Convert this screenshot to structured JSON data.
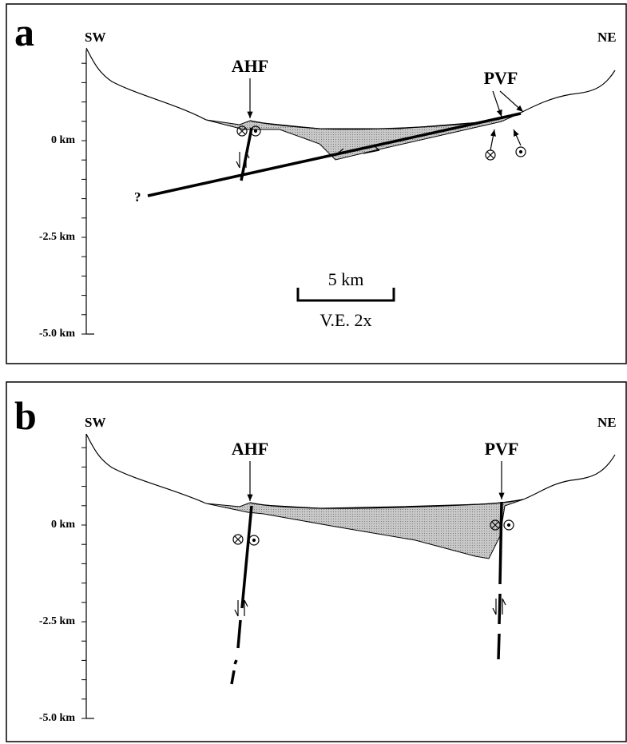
{
  "panels": [
    {
      "letter": "a",
      "left_label": "SW",
      "right_label": "NE",
      "faults": [
        "AHF",
        "PVF"
      ],
      "depth_labels": [
        "0 km",
        "-2.5 km",
        "-5.0 km"
      ],
      "unknown_marker": "?",
      "scale_bar": "5 km",
      "exaggeration": "V.E. 2x"
    },
    {
      "letter": "b",
      "left_label": "SW",
      "right_label": "NE",
      "faults": [
        "AHF",
        "PVF"
      ],
      "depth_labels": [
        "0 km",
        "-2.5 km",
        "-5.0 km"
      ]
    }
  ]
}
